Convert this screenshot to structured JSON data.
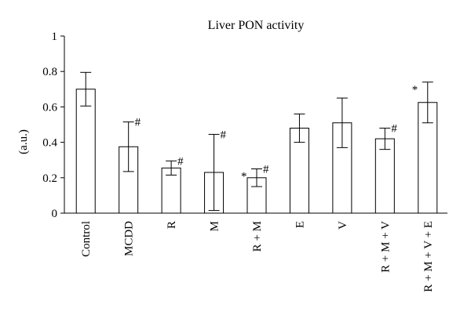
{
  "chart_data": {
    "type": "bar",
    "title": "Liver PON activity",
    "ylabel": "(a.u.)",
    "xlabel": "",
    "ylim": [
      0,
      1
    ],
    "yticks": [
      "0",
      "0.2",
      "0.4",
      "0.6",
      "0.8",
      "1"
    ],
    "categories": [
      "Control",
      "MCDD",
      "R",
      "M",
      "R + M",
      "E",
      "V",
      "R + M + V",
      "R + M + V + E"
    ],
    "values": [
      0.7,
      0.375,
      0.255,
      0.23,
      0.2,
      0.48,
      0.51,
      0.42,
      0.625
    ],
    "errors": [
      0.095,
      0.14,
      0.04,
      0.215,
      0.05,
      0.08,
      0.14,
      0.06,
      0.115
    ],
    "star": [
      "",
      "",
      "",
      "",
      "*",
      "",
      "",
      "",
      "*"
    ],
    "hash": [
      "",
      "#",
      "#",
      "#",
      "#",
      "",
      "",
      "#",
      ""
    ],
    "grid": false,
    "legend": "none",
    "bar_fill": "#ffffff",
    "bar_stroke": "#000000"
  }
}
